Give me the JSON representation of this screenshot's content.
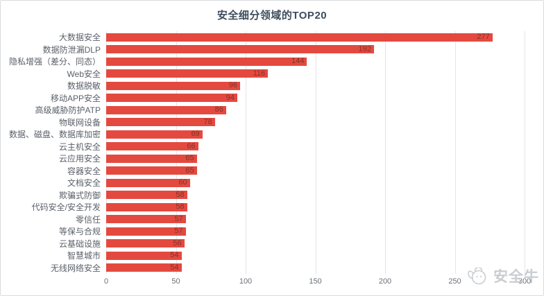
{
  "chart": {
    "title": "安全细分领域的TOP20",
    "watermark": {
      "text": "安全牛",
      "icon": "bull-logo-icon"
    },
    "colors": {
      "bar": "#e4493f",
      "value_label": "#7e342b",
      "title": "#3d4d5c",
      "category_label": "#5a6069",
      "tick_label": "#6b7078",
      "gridline": "#e4e5e7",
      "watermark": "#c9cdd1",
      "background": "#ffffff"
    }
  },
  "chart_data": {
    "type": "bar",
    "orientation": "horizontal",
    "title": "安全细分领域的TOP20",
    "categories": [
      "大数据安全",
      "数据防泄漏DLP",
      "隐私增强（差分、同态）",
      "Web安全",
      "数据脱敏",
      "移动APP安全",
      "高级威胁防护ATP",
      "物联网设备",
      "数据、磁盘、数据库加密",
      "云主机安全",
      "云应用安全",
      "容器安全",
      "文档安全",
      "欺骗式防御",
      "代码安全/安全开发",
      "零信任",
      "等保与合规",
      "云基础设施",
      "智慧城市",
      "无线网络安全"
    ],
    "values": [
      277,
      192,
      144,
      116,
      96,
      94,
      86,
      78,
      69,
      66,
      65,
      65,
      60,
      58,
      58,
      57,
      57,
      56,
      54,
      54
    ],
    "xlabel": "",
    "ylabel": "",
    "xlim": [
      0,
      300
    ],
    "xticks": [
      0,
      50,
      100,
      150,
      200,
      250,
      300
    ],
    "grid": true,
    "legend": false,
    "value_labels": "inside-end"
  }
}
